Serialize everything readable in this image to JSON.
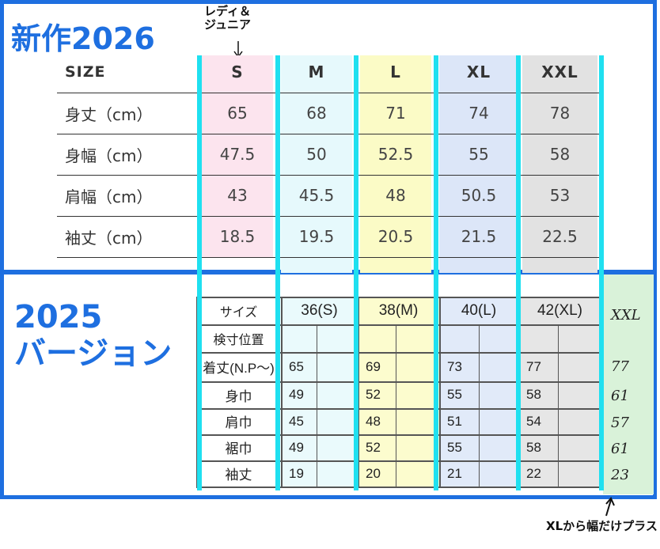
{
  "top": {
    "title": "新作2026",
    "note": [
      "レディ＆",
      "ジュニア"
    ],
    "header": [
      "SIZE",
      "S",
      "M",
      "L",
      "XL",
      "XXL"
    ],
    "rows": [
      [
        "身丈（cm）",
        65,
        68,
        71,
        74,
        78
      ],
      [
        "身幅（cm）",
        47.5,
        50,
        52.5,
        55,
        58
      ],
      [
        "肩幅（cm）",
        43,
        45.5,
        48,
        50.5,
        53
      ],
      [
        "袖丈（cm）",
        18.5,
        19.5,
        20.5,
        21.5,
        22.5
      ]
    ]
  },
  "bottom": {
    "title": [
      "2025",
      "バージョン"
    ],
    "header": [
      "サイズ",
      "36(S)",
      "38(M)",
      "40(L)",
      "42(XL)"
    ],
    "subheader": "検寸位置",
    "rows": [
      [
        "着丈(N.P〜)",
        65,
        69,
        73,
        77
      ],
      [
        "身巾",
        49,
        52,
        55,
        58
      ],
      [
        "肩巾",
        45,
        48,
        51,
        54
      ],
      [
        "裾巾",
        49,
        52,
        55,
        58
      ],
      [
        "袖丈",
        19,
        20,
        21,
        22
      ]
    ],
    "handwritten": [
      "XXL",
      77,
      61,
      57,
      61,
      23
    ]
  },
  "footnote": "XLから幅だけプラス"
}
